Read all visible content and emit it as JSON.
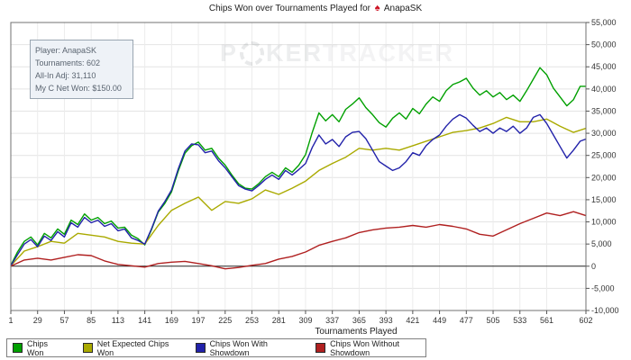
{
  "title": {
    "text": "Chips Won over Tournaments Played for",
    "player": "AnapaSK",
    "spade_icon_color": "#cc1122"
  },
  "info_box": {
    "lines": [
      "Player: AnapaSK",
      "Tournaments: 602",
      "All-In Adj: 31,110",
      "My C Net Won: $150.00"
    ]
  },
  "watermark": {
    "p1": "P",
    "p2": "KER",
    "p3": "TRACKER"
  },
  "legend": [
    {
      "label": "Chips Won",
      "color": "#00A000"
    },
    {
      "label": "Net Expected Chips Won",
      "color": "#AAAA00"
    },
    {
      "label": "Chips Won With Showdown",
      "color": "#2222AA"
    },
    {
      "label": "Chips Won Without Showdown",
      "color": "#B02020"
    }
  ],
  "chart_data": {
    "type": "line",
    "title": "Chips Won over Tournaments Played for AnapaSK",
    "xlabel": "Tournaments Played",
    "ylabel": "",
    "xlim": [
      1,
      602
    ],
    "ylim": [
      -10000,
      55000
    ],
    "y_tick_step": 5000,
    "x_ticks": [
      1,
      29,
      57,
      85,
      113,
      141,
      169,
      197,
      225,
      253,
      281,
      309,
      337,
      365,
      393,
      421,
      449,
      477,
      505,
      533,
      561,
      602
    ],
    "grid": true,
    "zero_line": true,
    "legend_position": "bottom",
    "series": [
      {
        "id": "chips-won",
        "name": "Chips Won",
        "color": "#00A000",
        "points": [
          [
            1,
            200
          ],
          [
            8,
            3200
          ],
          [
            15,
            5600
          ],
          [
            22,
            6600
          ],
          [
            29,
            4800
          ],
          [
            36,
            7400
          ],
          [
            43,
            6400
          ],
          [
            50,
            8400
          ],
          [
            57,
            7200
          ],
          [
            64,
            10400
          ],
          [
            71,
            9400
          ],
          [
            78,
            11800
          ],
          [
            85,
            10400
          ],
          [
            92,
            11000
          ],
          [
            99,
            9600
          ],
          [
            106,
            10200
          ],
          [
            113,
            8600
          ],
          [
            120,
            8800
          ],
          [
            127,
            7000
          ],
          [
            134,
            6200
          ],
          [
            141,
            4800
          ],
          [
            148,
            8200
          ],
          [
            155,
            12200
          ],
          [
            162,
            14200
          ],
          [
            169,
            16800
          ],
          [
            176,
            21500
          ],
          [
            183,
            25500
          ],
          [
            190,
            27200
          ],
          [
            197,
            28000
          ],
          [
            204,
            26200
          ],
          [
            211,
            26600
          ],
          [
            218,
            24400
          ],
          [
            225,
            22800
          ],
          [
            232,
            20600
          ],
          [
            239,
            18600
          ],
          [
            246,
            17600
          ],
          [
            253,
            17400
          ],
          [
            260,
            18600
          ],
          [
            267,
            20200
          ],
          [
            274,
            21200
          ],
          [
            281,
            20200
          ],
          [
            288,
            22200
          ],
          [
            295,
            21200
          ],
          [
            302,
            22800
          ],
          [
            309,
            25200
          ],
          [
            316,
            30200
          ],
          [
            323,
            34600
          ],
          [
            330,
            32800
          ],
          [
            337,
            34200
          ],
          [
            344,
            32600
          ],
          [
            351,
            35400
          ],
          [
            358,
            36600
          ],
          [
            365,
            38000
          ],
          [
            372,
            35800
          ],
          [
            379,
            34200
          ],
          [
            386,
            32400
          ],
          [
            393,
            31400
          ],
          [
            400,
            33400
          ],
          [
            407,
            34600
          ],
          [
            414,
            33200
          ],
          [
            421,
            35600
          ],
          [
            428,
            34400
          ],
          [
            435,
            36600
          ],
          [
            442,
            38200
          ],
          [
            449,
            37200
          ],
          [
            456,
            39600
          ],
          [
            463,
            41000
          ],
          [
            470,
            41600
          ],
          [
            477,
            42400
          ],
          [
            484,
            40200
          ],
          [
            491,
            38600
          ],
          [
            498,
            39600
          ],
          [
            505,
            38200
          ],
          [
            512,
            39200
          ],
          [
            519,
            37600
          ],
          [
            526,
            38600
          ],
          [
            533,
            37200
          ],
          [
            540,
            39600
          ],
          [
            547,
            42200
          ],
          [
            554,
            44800
          ],
          [
            561,
            43200
          ],
          [
            568,
            40200
          ],
          [
            575,
            38200
          ],
          [
            582,
            36200
          ],
          [
            589,
            37600
          ],
          [
            596,
            40600
          ],
          [
            602,
            40600
          ]
        ]
      },
      {
        "id": "net-expected-chips-won",
        "name": "Net Expected Chips Won",
        "color": "#AAAA00",
        "points": [
          [
            1,
            100
          ],
          [
            15,
            3400
          ],
          [
            29,
            4400
          ],
          [
            43,
            5600
          ],
          [
            57,
            5200
          ],
          [
            71,
            7400
          ],
          [
            85,
            7000
          ],
          [
            99,
            6600
          ],
          [
            113,
            5600
          ],
          [
            127,
            5200
          ],
          [
            141,
            5000
          ],
          [
            155,
            9200
          ],
          [
            169,
            12600
          ],
          [
            183,
            14200
          ],
          [
            197,
            15600
          ],
          [
            211,
            12600
          ],
          [
            225,
            14600
          ],
          [
            239,
            14200
          ],
          [
            253,
            15200
          ],
          [
            267,
            17200
          ],
          [
            281,
            16200
          ],
          [
            295,
            17600
          ],
          [
            309,
            19200
          ],
          [
            323,
            21600
          ],
          [
            337,
            23200
          ],
          [
            351,
            24600
          ],
          [
            365,
            26600
          ],
          [
            379,
            26200
          ],
          [
            393,
            26600
          ],
          [
            407,
            26200
          ],
          [
            421,
            27200
          ],
          [
            435,
            28200
          ],
          [
            449,
            29200
          ],
          [
            463,
            30200
          ],
          [
            477,
            30600
          ],
          [
            491,
            31200
          ],
          [
            505,
            32200
          ],
          [
            519,
            33600
          ],
          [
            533,
            32600
          ],
          [
            547,
            32600
          ],
          [
            561,
            33200
          ],
          [
            575,
            31600
          ],
          [
            589,
            30200
          ],
          [
            602,
            31110
          ]
        ]
      },
      {
        "id": "chips-won-with-showdown",
        "name": "Chips Won With Showdown",
        "color": "#2222AA",
        "points": [
          [
            1,
            100
          ],
          [
            8,
            2600
          ],
          [
            15,
            5000
          ],
          [
            22,
            6000
          ],
          [
            29,
            4400
          ],
          [
            36,
            6800
          ],
          [
            43,
            5800
          ],
          [
            50,
            7800
          ],
          [
            57,
            6600
          ],
          [
            64,
            9800
          ],
          [
            71,
            8800
          ],
          [
            78,
            11000
          ],
          [
            85,
            9800
          ],
          [
            92,
            10400
          ],
          [
            99,
            9000
          ],
          [
            106,
            9600
          ],
          [
            113,
            8000
          ],
          [
            120,
            8400
          ],
          [
            127,
            6400
          ],
          [
            134,
            5800
          ],
          [
            141,
            5000
          ],
          [
            148,
            8400
          ],
          [
            155,
            12400
          ],
          [
            162,
            14600
          ],
          [
            169,
            17200
          ],
          [
            176,
            22000
          ],
          [
            183,
            26000
          ],
          [
            190,
            27600
          ],
          [
            197,
            27400
          ],
          [
            204,
            25600
          ],
          [
            211,
            26000
          ],
          [
            218,
            23800
          ],
          [
            225,
            22200
          ],
          [
            232,
            20200
          ],
          [
            239,
            18200
          ],
          [
            246,
            17400
          ],
          [
            253,
            17000
          ],
          [
            260,
            18200
          ],
          [
            267,
            19600
          ],
          [
            274,
            20600
          ],
          [
            281,
            19600
          ],
          [
            288,
            21600
          ],
          [
            295,
            20600
          ],
          [
            302,
            21800
          ],
          [
            309,
            23200
          ],
          [
            316,
            26800
          ],
          [
            323,
            29600
          ],
          [
            330,
            27600
          ],
          [
            337,
            28600
          ],
          [
            344,
            27000
          ],
          [
            351,
            29200
          ],
          [
            358,
            30200
          ],
          [
            365,
            30400
          ],
          [
            372,
            28800
          ],
          [
            379,
            26200
          ],
          [
            386,
            23600
          ],
          [
            393,
            22600
          ],
          [
            400,
            21600
          ],
          [
            407,
            22200
          ],
          [
            414,
            23600
          ],
          [
            421,
            25600
          ],
          [
            428,
            25000
          ],
          [
            435,
            27200
          ],
          [
            442,
            28600
          ],
          [
            449,
            29600
          ],
          [
            456,
            31600
          ],
          [
            463,
            33200
          ],
          [
            470,
            34200
          ],
          [
            477,
            33400
          ],
          [
            484,
            31800
          ],
          [
            491,
            30400
          ],
          [
            498,
            31200
          ],
          [
            505,
            30000
          ],
          [
            512,
            31200
          ],
          [
            519,
            30400
          ],
          [
            526,
            31600
          ],
          [
            533,
            30000
          ],
          [
            540,
            31200
          ],
          [
            547,
            33600
          ],
          [
            554,
            34200
          ],
          [
            561,
            32200
          ],
          [
            568,
            29600
          ],
          [
            575,
            27000
          ],
          [
            582,
            24400
          ],
          [
            589,
            26200
          ],
          [
            596,
            28200
          ],
          [
            602,
            28700
          ]
        ]
      },
      {
        "id": "chips-won-without-showdown",
        "name": "Chips Won Without Showdown",
        "color": "#B02020",
        "points": [
          [
            1,
            0
          ],
          [
            15,
            1400
          ],
          [
            29,
            1800
          ],
          [
            43,
            1400
          ],
          [
            57,
            2000
          ],
          [
            71,
            2600
          ],
          [
            85,
            2400
          ],
          [
            99,
            1200
          ],
          [
            113,
            400
          ],
          [
            127,
            100
          ],
          [
            141,
            -200
          ],
          [
            155,
            600
          ],
          [
            169,
            900
          ],
          [
            183,
            1100
          ],
          [
            197,
            600
          ],
          [
            211,
            100
          ],
          [
            225,
            -600
          ],
          [
            239,
            -300
          ],
          [
            253,
            200
          ],
          [
            267,
            600
          ],
          [
            281,
            1600
          ],
          [
            295,
            2200
          ],
          [
            309,
            3200
          ],
          [
            323,
            4700
          ],
          [
            337,
            5600
          ],
          [
            351,
            6400
          ],
          [
            365,
            7600
          ],
          [
            379,
            8200
          ],
          [
            393,
            8600
          ],
          [
            407,
            8800
          ],
          [
            421,
            9200
          ],
          [
            435,
            8800
          ],
          [
            449,
            9400
          ],
          [
            463,
            9000
          ],
          [
            477,
            8400
          ],
          [
            491,
            7200
          ],
          [
            505,
            6800
          ],
          [
            519,
            8200
          ],
          [
            533,
            9600
          ],
          [
            547,
            10800
          ],
          [
            561,
            12000
          ],
          [
            575,
            11400
          ],
          [
            589,
            12300
          ],
          [
            602,
            11400
          ]
        ]
      }
    ]
  }
}
